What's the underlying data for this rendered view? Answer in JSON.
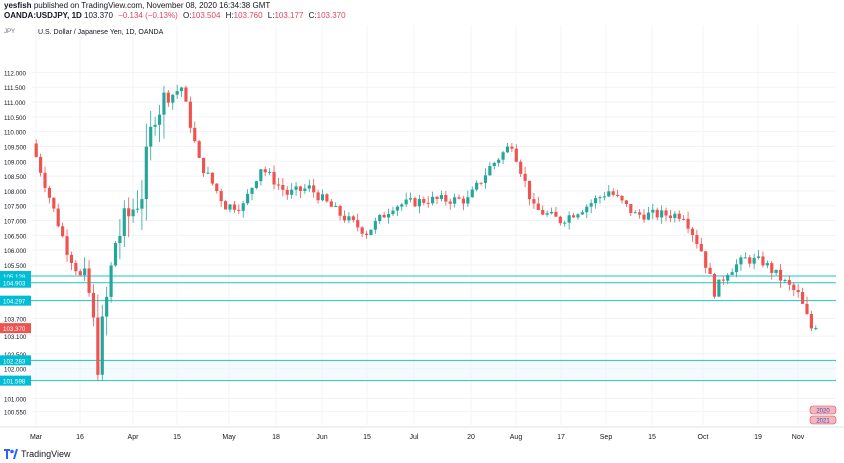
{
  "header": {
    "publisher": "yesfish",
    "published_text": "published on TradingView.com, November 08, 2020 16:34:38 GMT",
    "symbol": "OANDA:USDJPY, 1D",
    "last": "103.370",
    "change": "−0.134 (−0.13%)",
    "o_label": "O:",
    "o_value": "103.504",
    "h_label": "H:",
    "h_value": "103.760",
    "l_label": "L:",
    "l_value": "103.177",
    "c_label": "C:",
    "c_value": "103.370"
  },
  "chart_title": "U.S. Dollar / Japanese Yen, 1D, OANDA",
  "axis_unit_label": "JPY",
  "footer": {
    "brand": "TradingView"
  },
  "colors": {
    "up": "#26a69a",
    "down": "#ef5350",
    "hline": "#22c3c3",
    "label_bg": "#00bcd4",
    "price_label_bg": "#ef5350",
    "grid": "#f0f3fa",
    "axis_text": "#131722"
  },
  "chart_data": {
    "type": "candlestick",
    "title": "U.S. Dollar / Japanese Yen, 1D, OANDA",
    "ylim": [
      100.1,
      113.6
    ],
    "y_ticks": [
      "112.000",
      "111.500",
      "111.000",
      "110.500",
      "110.000",
      "109.500",
      "109.000",
      "108.500",
      "108.000",
      "107.500",
      "107.000",
      "106.500",
      "106.000",
      "105.500",
      "104.297",
      "103.700",
      "103.100",
      "102.500",
      "102.000",
      "101.000",
      "100.550"
    ],
    "x_tick_labels": [
      "Mar",
      "16",
      "Apr",
      "15",
      "May",
      "18",
      "Jun",
      "15",
      "Jul",
      "20",
      "Aug",
      "17",
      "Sep",
      "15",
      "Oct",
      "19",
      "Nov"
    ],
    "horizontal_levels": [
      {
        "price": 105.128,
        "label": "105.128"
      },
      {
        "price": 104.903,
        "label": "104.903"
      },
      {
        "price": 104.297,
        "label": "104.297"
      },
      {
        "price": 102.283,
        "label": "102.283"
      },
      {
        "price": 101.598,
        "label": "101.598"
      }
    ],
    "last_price": {
      "price": 103.37,
      "label": "103.370"
    },
    "n_bars": 178,
    "legend_flags": [
      "2020",
      "2021"
    ],
    "key_points": [
      {
        "bar": 0,
        "price": 109.6
      },
      {
        "bar": 8,
        "price": 106.0
      },
      {
        "bar": 13,
        "price": 104.5
      },
      {
        "bar": 15,
        "price": 102.3
      },
      {
        "bar": 19,
        "price": 106.3
      },
      {
        "bar": 25,
        "price": 108.0
      },
      {
        "bar": 28,
        "price": 110.8
      },
      {
        "bar": 34,
        "price": 111.5
      },
      {
        "bar": 38,
        "price": 109.0
      },
      {
        "bar": 44,
        "price": 107.5
      },
      {
        "bar": 48,
        "price": 107.5
      },
      {
        "bar": 52,
        "price": 108.8
      },
      {
        "bar": 58,
        "price": 107.9
      },
      {
        "bar": 63,
        "price": 108.1
      },
      {
        "bar": 70,
        "price": 107.2
      },
      {
        "bar": 76,
        "price": 106.6
      },
      {
        "bar": 82,
        "price": 107.5
      },
      {
        "bar": 90,
        "price": 107.7
      },
      {
        "bar": 99,
        "price": 107.7
      },
      {
        "bar": 104,
        "price": 108.8
      },
      {
        "bar": 109,
        "price": 109.6
      },
      {
        "bar": 114,
        "price": 107.4
      },
      {
        "bar": 120,
        "price": 107.0
      },
      {
        "bar": 126,
        "price": 107.5
      },
      {
        "bar": 131,
        "price": 108.0
      },
      {
        "bar": 137,
        "price": 107.2
      },
      {
        "bar": 143,
        "price": 107.2
      },
      {
        "bar": 148,
        "price": 107.2
      },
      {
        "bar": 152,
        "price": 106.0
      },
      {
        "bar": 155,
        "price": 104.6
      },
      {
        "bar": 158,
        "price": 105.3
      },
      {
        "bar": 162,
        "price": 105.7
      },
      {
        "bar": 166,
        "price": 105.6
      },
      {
        "bar": 171,
        "price": 104.9
      },
      {
        "bar": 174,
        "price": 104.5
      },
      {
        "bar": 177,
        "price": 103.37
      }
    ]
  }
}
